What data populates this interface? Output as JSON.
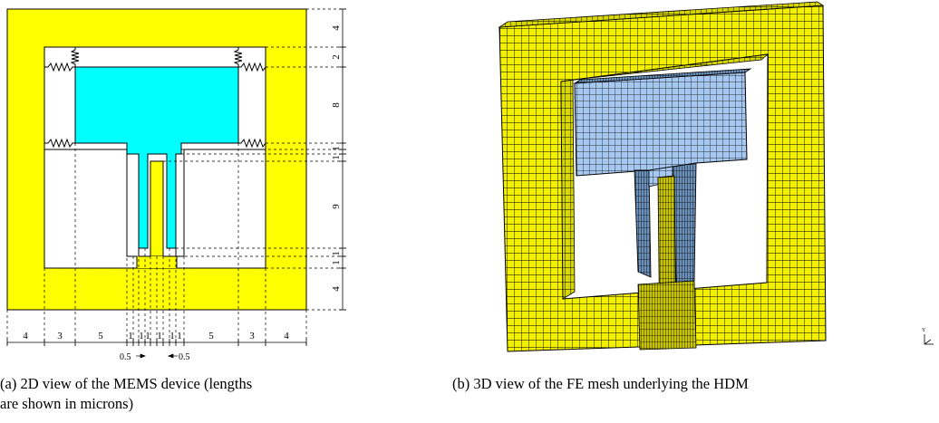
{
  "figure_a": {
    "caption_line1": "(a)  2D view of the MEMS device (lengths",
    "caption_line2": "are shown in microns)",
    "right_dims": [
      "4",
      "2",
      "8",
      "1",
      "1",
      "9",
      "1",
      "1",
      "4"
    ],
    "bottom_dims": [
      "4",
      "3",
      "5",
      "1",
      "1",
      "1",
      "1",
      "1",
      "1",
      "5",
      "3",
      "4"
    ],
    "half_labels": [
      "0.5",
      "0.5"
    ],
    "colors": {
      "frame": "#ffff00",
      "mass": "#00ffff",
      "outline": "#000000"
    }
  },
  "figure_b": {
    "caption": "(b)  3D view of the FE mesh underlying the HDM",
    "axis_label": "Y",
    "colors": {
      "frame": "#f2f000",
      "mass": "#a6c8f0",
      "mesh": "#000000"
    }
  }
}
